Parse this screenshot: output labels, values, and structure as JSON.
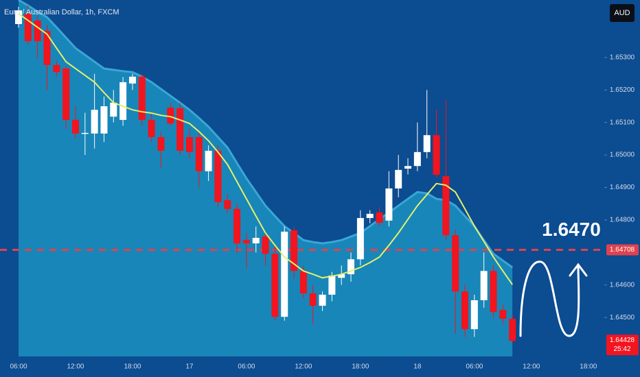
{
  "header": {
    "title": "Euro / Australian Dollar, 1h, FXCM",
    "currency_button": "AUD"
  },
  "chart_data": {
    "type": "candlestick",
    "categories": [
      "06:00",
      null,
      null,
      null,
      null,
      null,
      "12:00",
      null,
      null,
      null,
      null,
      null,
      "18:00",
      null,
      null,
      null,
      null,
      null,
      "17",
      null,
      null,
      null,
      null,
      null,
      "06:00",
      null,
      null,
      null,
      null,
      null,
      "12:00",
      null,
      null,
      null,
      null,
      null,
      "18:00",
      null,
      null,
      null,
      null,
      null,
      "18",
      null,
      null,
      null,
      null,
      null,
      "06:00",
      null,
      null,
      null,
      null,
      null,
      "12:00",
      null,
      null,
      null,
      null,
      null,
      "18:00",
      null
    ],
    "open": [
      1.65403,
      1.65435,
      1.65414,
      1.65382,
      1.65277,
      1.65266,
      1.65108,
      1.65066,
      1.65066,
      1.65066,
      1.65118,
      1.65108,
      1.6522,
      1.65241,
      1.65108,
      1.65055,
      1.65146,
      1.65144,
      1.65055,
      1.65055,
      1.6495,
      1.65013,
      1.64861,
      1.64834,
      1.64738,
      1.64728,
      1.64749,
      1.64696,
      1.64502,
      1.64768,
      1.64643,
      1.64574,
      1.64536,
      1.6457,
      1.64622,
      1.64633,
      1.64679,
      1.64806,
      1.64823,
      1.64798,
      1.64897,
      1.64958,
      1.64966,
      1.65009,
      1.65061,
      1.64935,
      1.64753,
      1.6458,
      1.64464,
      1.64553,
      1.64643,
      1.64523,
      1.64496,
      null,
      null,
      null,
      null,
      null,
      null,
      null,
      null,
      null
    ],
    "high": [
      1.65456,
      1.6546,
      1.6543,
      1.654,
      1.6529,
      1.65275,
      1.6515,
      1.6513,
      1.6525,
      1.6518,
      1.652,
      1.6524,
      1.6525,
      1.6525,
      1.6513,
      1.6507,
      1.6516,
      1.6516,
      1.6508,
      1.6507,
      1.6503,
      1.6503,
      1.6488,
      1.6485,
      1.6476,
      1.6478,
      1.6476,
      1.6472,
      1.6478,
      1.6478,
      1.6466,
      1.646,
      1.6458,
      1.6464,
      1.6466,
      1.647,
      1.6483,
      1.6483,
      1.6484,
      1.6495,
      1.65,
      1.6499,
      1.651,
      1.652,
      1.6514,
      1.6517,
      1.6477,
      1.646,
      1.6457,
      1.647,
      1.6466,
      1.6454,
      1.6451,
      null,
      null,
      null,
      null,
      null,
      null,
      null,
      null,
      null
    ],
    "low": [
      1.65392,
      1.6534,
      1.65298,
      1.652,
      1.6524,
      1.6508,
      1.6505,
      1.65,
      1.6502,
      1.6504,
      1.651,
      1.6509,
      1.652,
      1.6509,
      1.6504,
      1.6496,
      1.6509,
      1.65,
      1.6499,
      1.649,
      1.6492,
      1.6484,
      1.6482,
      1.647,
      1.6465,
      1.647,
      1.6466,
      1.6449,
      1.6449,
      1.6462,
      1.6456,
      1.6448,
      1.6452,
      1.6455,
      1.646,
      1.6461,
      1.6466,
      1.6479,
      1.6478,
      1.6478,
      1.6487,
      1.6494,
      1.6495,
      1.6499,
      1.6493,
      1.6474,
      1.6445,
      1.6444,
      1.6444,
      1.6453,
      1.645,
      1.6448,
      1.6442,
      null,
      null,
      null,
      null,
      null,
      null,
      null,
      null,
      null
    ],
    "close": [
      1.65445,
      1.6535,
      1.6535,
      1.65277,
      1.65255,
      1.65108,
      1.65066,
      1.65068,
      1.65139,
      1.6515,
      1.65161,
      1.65224,
      1.65241,
      1.65108,
      1.65055,
      1.65013,
      1.65097,
      1.65013,
      1.65009,
      1.6495,
      1.65013,
      1.64855,
      1.64834,
      1.64728,
      1.64728,
      1.64745,
      1.64696,
      1.64502,
      1.64764,
      1.64643,
      1.64574,
      1.64536,
      1.6457,
      1.64629,
      1.64633,
      1.64679,
      1.64806,
      1.64819,
      1.64791,
      1.64897,
      1.64954,
      1.64966,
      1.65009,
      1.65061,
      1.64939,
      1.64753,
      1.6458,
      1.64464,
      1.64553,
      1.64643,
      1.64517,
      1.64496,
      1.64428,
      null,
      null,
      null,
      null,
      null,
      null,
      null,
      null,
      null
    ],
    "up_color": "#ffffff",
    "down_color": "#f2141e",
    "moving_average": {
      "color": "#e4f06c",
      "values": [
        1.65435,
        1.65414,
        1.65393,
        1.65372,
        1.65329,
        1.65287,
        1.65266,
        1.65245,
        1.65224,
        1.65192,
        1.65161,
        1.6515,
        1.65139,
        1.65133,
        1.65129,
        1.65122,
        1.65118,
        1.65108,
        1.65097,
        1.65072,
        1.65044,
        1.65009,
        1.64971,
        1.64918,
        1.64865,
        1.64812,
        1.6476,
        1.64722,
        1.64686,
        1.64665,
        1.64643,
        1.64633,
        1.64622,
        1.64627,
        1.64633,
        1.64643,
        1.64654,
        1.64669,
        1.64686,
        1.64722,
        1.6476,
        1.64802,
        1.64844,
        1.64878,
        1.64912,
        1.64907,
        1.64886,
        1.64834,
        1.64781,
        1.64734,
        1.64686,
        1.64643,
        1.64601,
        null,
        null,
        null,
        null,
        null,
        null,
        null,
        null,
        null
      ]
    },
    "envelope": {
      "color": "#1886b8",
      "edge_color": "#3aa6d6",
      "upper": [
        1.65477,
        1.6546,
        1.65441,
        1.65424,
        1.65393,
        1.65361,
        1.65329,
        1.65308,
        1.65287,
        1.65266,
        1.65262,
        1.65258,
        1.65255,
        1.65241,
        1.65224,
        1.65203,
        1.65182,
        1.65161,
        1.65139,
        1.65114,
        1.65087,
        1.65055,
        1.65023,
        1.64975,
        1.64928,
        1.64886,
        1.64844,
        1.64812,
        1.64781,
        1.6476,
        1.64738,
        1.64732,
        1.64728,
        1.64732,
        1.64738,
        1.64749,
        1.6476,
        1.64781,
        1.64802,
        1.64823,
        1.64844,
        1.64865,
        1.64886,
        1.64882,
        1.64865,
        1.64861,
        1.64844,
        1.64812,
        1.64781,
        1.64738,
        1.64696,
        1.64675,
        1.64654,
        null,
        null,
        null,
        null,
        null,
        null,
        null,
        null,
        null
      ]
    },
    "ylim": [
      1.6438,
      1.65477
    ],
    "yticks": [
      {
        "value": 1.645,
        "label": "1.64500"
      },
      {
        "value": 1.646,
        "label": "1.64600"
      },
      {
        "value": 1.648,
        "label": "1.64800"
      },
      {
        "value": 1.649,
        "label": "1.64900"
      },
      {
        "value": 1.65,
        "label": "1.65000"
      },
      {
        "value": 1.651,
        "label": "1.65100"
      },
      {
        "value": 1.652,
        "label": "1.65200"
      },
      {
        "value": 1.653,
        "label": "1.65300"
      }
    ],
    "reference_line": {
      "value": 1.64708,
      "color": "#e0424d"
    },
    "last_price": {
      "value": 1.64428,
      "countdown": "25:42"
    },
    "annotation": "1.6470"
  }
}
